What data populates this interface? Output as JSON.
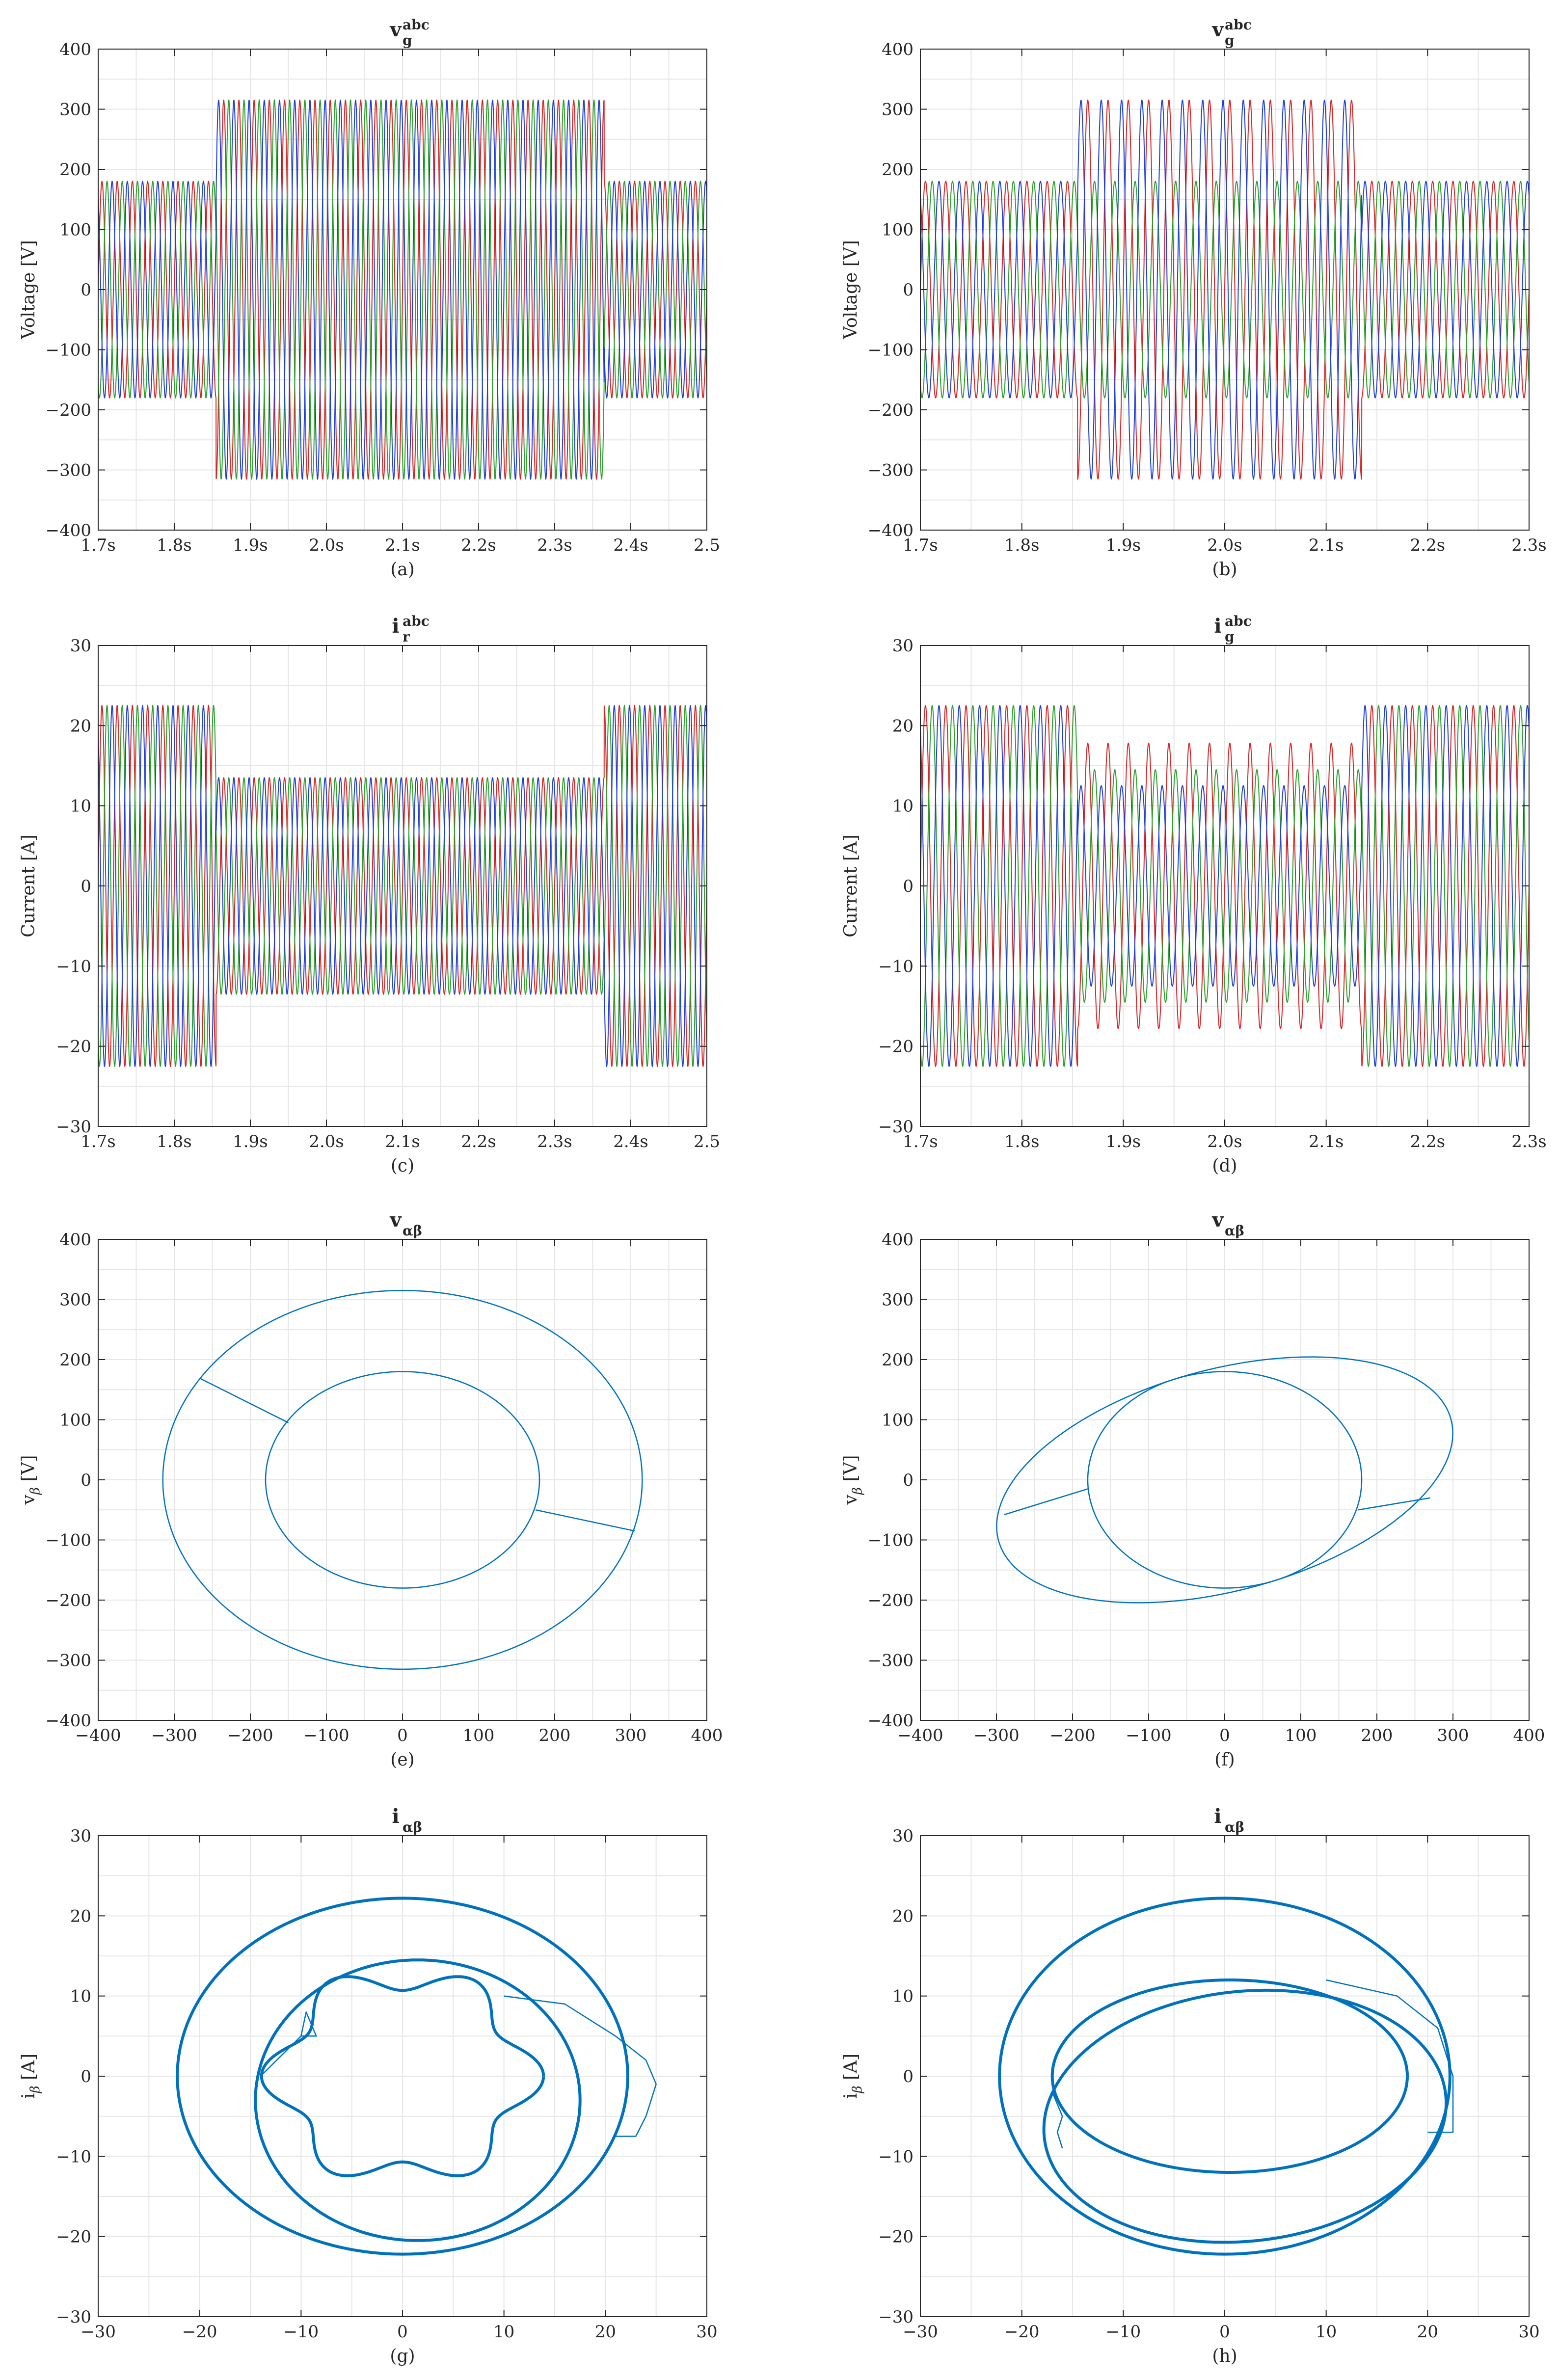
{
  "colors": {
    "phase_a": "#d62728",
    "phase_b": "#2ca02c",
    "phase_c": "#1f3fd6",
    "locus": "#0072bd",
    "grid": "#e6e6e6",
    "axis": "#262626"
  },
  "chart_data": [
    {
      "type": "line",
      "title": "v",
      "title_sub": "g",
      "title_sup": "abc",
      "ylabel": "Voltage [V]",
      "label": "(a)",
      "xlim": [
        1.7,
        2.5
      ],
      "ylim": [
        -400,
        400
      ],
      "xticks": [
        1.7,
        1.8,
        1.9,
        2.0,
        2.1,
        2.2,
        2.3,
        2.4,
        2.5
      ],
      "xticklabels": [
        "1.7s",
        "1.8s",
        "1.9s",
        "2.0s",
        "2.1s",
        "2.2s",
        "2.3s",
        "2.4s",
        "2.5"
      ],
      "yticks": [
        -400,
        -300,
        -200,
        -100,
        0,
        100,
        200,
        300,
        400
      ],
      "frequency_hz": 50,
      "segments": [
        {
          "from": 1.7,
          "to": 1.855,
          "amplitudes": [
            180,
            180,
            180
          ]
        },
        {
          "from": 1.855,
          "to": 2.365,
          "amplitudes": [
            315,
            315,
            315
          ]
        },
        {
          "from": 2.365,
          "to": 2.5,
          "amplitudes": [
            180,
            180,
            180
          ]
        }
      ]
    },
    {
      "type": "line",
      "title": "v",
      "title_sub": "g",
      "title_sup": "abc",
      "ylabel": "Voltage [V]",
      "label": "(b)",
      "xlim": [
        1.7,
        2.3
      ],
      "ylim": [
        -400,
        400
      ],
      "xticks": [
        1.7,
        1.8,
        1.9,
        2.0,
        2.1,
        2.2,
        2.3
      ],
      "xticklabels": [
        "1.7s",
        "1.8s",
        "1.9s",
        "2.0s",
        "2.1s",
        "2.2s",
        "2.3s"
      ],
      "yticks": [
        -400,
        -300,
        -200,
        -100,
        0,
        100,
        200,
        300,
        400
      ],
      "frequency_hz": 50,
      "segments": [
        {
          "from": 1.7,
          "to": 1.855,
          "amplitudes": [
            180,
            180,
            180
          ]
        },
        {
          "from": 1.855,
          "to": 2.135,
          "amplitudes": [
            315,
            180,
            315
          ]
        },
        {
          "from": 2.135,
          "to": 2.3,
          "amplitudes": [
            180,
            180,
            180
          ]
        }
      ]
    },
    {
      "type": "line",
      "title": "i",
      "title_sub": "r",
      "title_sup": "abc",
      "ylabel": "Current [A]",
      "label": "(c)",
      "xlim": [
        1.7,
        2.5
      ],
      "ylim": [
        -30,
        30
      ],
      "xticks": [
        1.7,
        1.8,
        1.9,
        2.0,
        2.1,
        2.2,
        2.3,
        2.4,
        2.5
      ],
      "xticklabels": [
        "1.7s",
        "1.8s",
        "1.9s",
        "2.0s",
        "2.1s",
        "2.2s",
        "2.3s",
        "2.4s",
        "2.5"
      ],
      "yticks": [
        -30,
        -20,
        -10,
        0,
        10,
        20,
        30
      ],
      "frequency_hz": 50,
      "segments": [
        {
          "from": 1.7,
          "to": 1.855,
          "amplitudes": [
            22.5,
            22.5,
            22.5
          ]
        },
        {
          "from": 1.855,
          "to": 2.365,
          "amplitudes": [
            13.5,
            13.5,
            13.5
          ]
        },
        {
          "from": 2.365,
          "to": 2.5,
          "amplitudes": [
            22.5,
            22.5,
            22.5
          ]
        }
      ]
    },
    {
      "type": "line",
      "title": "i",
      "title_sub": "g",
      "title_sup": "abc",
      "ylabel": "Current [A]",
      "label": "(d)",
      "xlim": [
        1.7,
        2.3
      ],
      "ylim": [
        -30,
        30
      ],
      "xticks": [
        1.7,
        1.8,
        1.9,
        2.0,
        2.1,
        2.2,
        2.3
      ],
      "xticklabels": [
        "1.7s",
        "1.8s",
        "1.9s",
        "2.0s",
        "2.1s",
        "2.2s",
        "2.3s"
      ],
      "yticks": [
        -30,
        -20,
        -10,
        0,
        10,
        20,
        30
      ],
      "frequency_hz": 50,
      "segments": [
        {
          "from": 1.7,
          "to": 1.855,
          "amplitudes": [
            22.5,
            22.5,
            22.5
          ]
        },
        {
          "from": 1.855,
          "to": 2.135,
          "amplitudes": [
            17.8,
            14.5,
            12.5
          ]
        },
        {
          "from": 2.135,
          "to": 2.3,
          "amplitudes": [
            22.5,
            22.5,
            22.5
          ]
        }
      ]
    },
    {
      "type": "line",
      "title": "v",
      "title_sub": "αβ",
      "ylabel": "v",
      "ylabel_sub": "β",
      "ylabel_unit": " [V]",
      "label": "(e)",
      "xlim": [
        -400,
        400
      ],
      "ylim": [
        -400,
        400
      ],
      "xticks": [
        -400,
        -300,
        -200,
        -100,
        0,
        100,
        200,
        300,
        400
      ],
      "yticks": [
        -400,
        -300,
        -200,
        -100,
        0,
        100,
        200,
        300,
        400
      ],
      "loci": [
        {
          "kind": "circle",
          "cx": 0,
          "cy": 0,
          "rx": 180,
          "ry": 180
        },
        {
          "kind": "circle",
          "cx": 0,
          "cy": 0,
          "rx": 315,
          "ry": 315
        },
        {
          "kind": "segment",
          "points": [
            [
              -150,
              95
            ],
            [
              -265,
              168
            ]
          ]
        },
        {
          "kind": "segment",
          "points": [
            [
              175,
              -50
            ],
            [
              305,
              -85
            ]
          ]
        }
      ]
    },
    {
      "type": "line",
      "title": "v",
      "title_sub": "αβ",
      "ylabel": "v",
      "ylabel_sub": "β",
      "ylabel_unit": " [V]",
      "label": "(f)",
      "xlim": [
        -400,
        400
      ],
      "ylim": [
        -400,
        400
      ],
      "xticks": [
        -400,
        -300,
        -200,
        -100,
        0,
        100,
        200,
        300,
        400
      ],
      "yticks": [
        -400,
        -300,
        -200,
        -100,
        0,
        100,
        200,
        300,
        400
      ],
      "loci": [
        {
          "kind": "circle",
          "cx": 0,
          "cy": 0,
          "rx": 180,
          "ry": 180
        },
        {
          "kind": "ellipse",
          "cx": 0,
          "cy": 0,
          "rx": 315,
          "ry": 180,
          "rotate_deg": 22
        },
        {
          "kind": "segment",
          "points": [
            [
              -180,
              -15
            ],
            [
              -290,
              -58
            ]
          ]
        },
        {
          "kind": "segment",
          "points": [
            [
              175,
              -50
            ],
            [
              270,
              -30
            ]
          ]
        }
      ]
    },
    {
      "type": "line",
      "title": "i",
      "title_sub": "αβ",
      "ylabel": "i",
      "ylabel_sub": "β",
      "ylabel_unit": " [A]",
      "label": "(g)",
      "xlim": [
        -30,
        30
      ],
      "ylim": [
        -30,
        30
      ],
      "xticks": [
        -30,
        -20,
        -10,
        0,
        10,
        20,
        30
      ],
      "yticks": [
        -30,
        -20,
        -10,
        0,
        10,
        20,
        30
      ],
      "loci": [
        {
          "kind": "circle",
          "cx": 0,
          "cy": 0,
          "rx": 22.2,
          "ry": 22.2,
          "heavy": true
        },
        {
          "kind": "ripple",
          "cx": 0,
          "cy": 0,
          "r": 12.3,
          "ripple": 1.6,
          "lobes": 6,
          "heavy": true
        },
        {
          "kind": "ellipse",
          "cx": 1.5,
          "cy": -3,
          "rx": 16,
          "ry": 17.5,
          "heavy": true
        },
        {
          "kind": "segment",
          "points": [
            [
              10,
              10
            ],
            [
              16,
              9
            ],
            [
              21,
              5
            ],
            [
              24,
              2
            ],
            [
              25,
              -1
            ],
            [
              24,
              -5
            ],
            [
              23,
              -7.5
            ],
            [
              21,
              -7.5
            ]
          ]
        },
        {
          "kind": "segment",
          "points": [
            [
              -10,
              5
            ],
            [
              -8.5,
              5
            ],
            [
              -9.5,
              8
            ],
            [
              -10,
              5
            ],
            [
              -14,
              0
            ]
          ]
        }
      ]
    },
    {
      "type": "line",
      "title": "i",
      "title_sub": "αβ",
      "ylabel": "i",
      "ylabel_sub": "β",
      "ylabel_unit": " [A]",
      "label": "(h)",
      "xlim": [
        -30,
        30
      ],
      "ylim": [
        -30,
        30
      ],
      "xticks": [
        -30,
        -20,
        -10,
        0,
        10,
        20,
        30
      ],
      "yticks": [
        -30,
        -20,
        -10,
        0,
        10,
        20,
        30
      ],
      "loci": [
        {
          "kind": "circle",
          "cx": 0,
          "cy": 0,
          "rx": 22.2,
          "ry": 22.2,
          "heavy": true
        },
        {
          "kind": "ellipse",
          "cx": 0.5,
          "cy": 0,
          "rx": 17.5,
          "ry": 12,
          "heavy": true
        },
        {
          "kind": "ellipse",
          "cx": 2,
          "cy": -5,
          "rx": 20,
          "ry": 15.5,
          "rotate_deg": 12,
          "heavy": true
        },
        {
          "kind": "segment",
          "points": [
            [
              10,
              12
            ],
            [
              17,
              10
            ],
            [
              21,
              6
            ],
            [
              22.5,
              0
            ],
            [
              22.5,
              -7
            ],
            [
              20,
              -7
            ]
          ]
        },
        {
          "kind": "segment",
          "points": [
            [
              -17,
              -2
            ],
            [
              -16,
              -5
            ],
            [
              -16.5,
              -7
            ],
            [
              -16,
              -9
            ]
          ]
        }
      ]
    }
  ]
}
